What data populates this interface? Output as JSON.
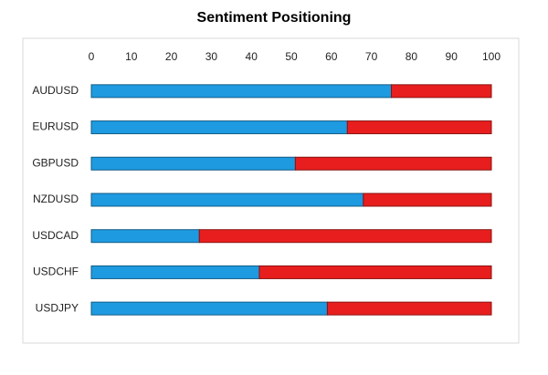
{
  "chart_data": {
    "type": "stacked-barh",
    "title": "Sentiment Positioning",
    "categories": [
      "AUDUSD",
      "EURUSD",
      "GBPUSD",
      "NZDUSD",
      "USDCAD",
      "USDCHF",
      "USDJPY"
    ],
    "series": [
      {
        "color": "#1e9ae0",
        "values": [
          75,
          64,
          51,
          68,
          27,
          42,
          59
        ]
      },
      {
        "color": "#e81e1e",
        "values": [
          25,
          36,
          49,
          32,
          73,
          58,
          41
        ]
      }
    ],
    "xlim": [
      0,
      100
    ],
    "xticks": [
      0,
      10,
      20,
      30,
      40,
      50,
      60,
      70,
      80,
      90,
      100
    ]
  }
}
